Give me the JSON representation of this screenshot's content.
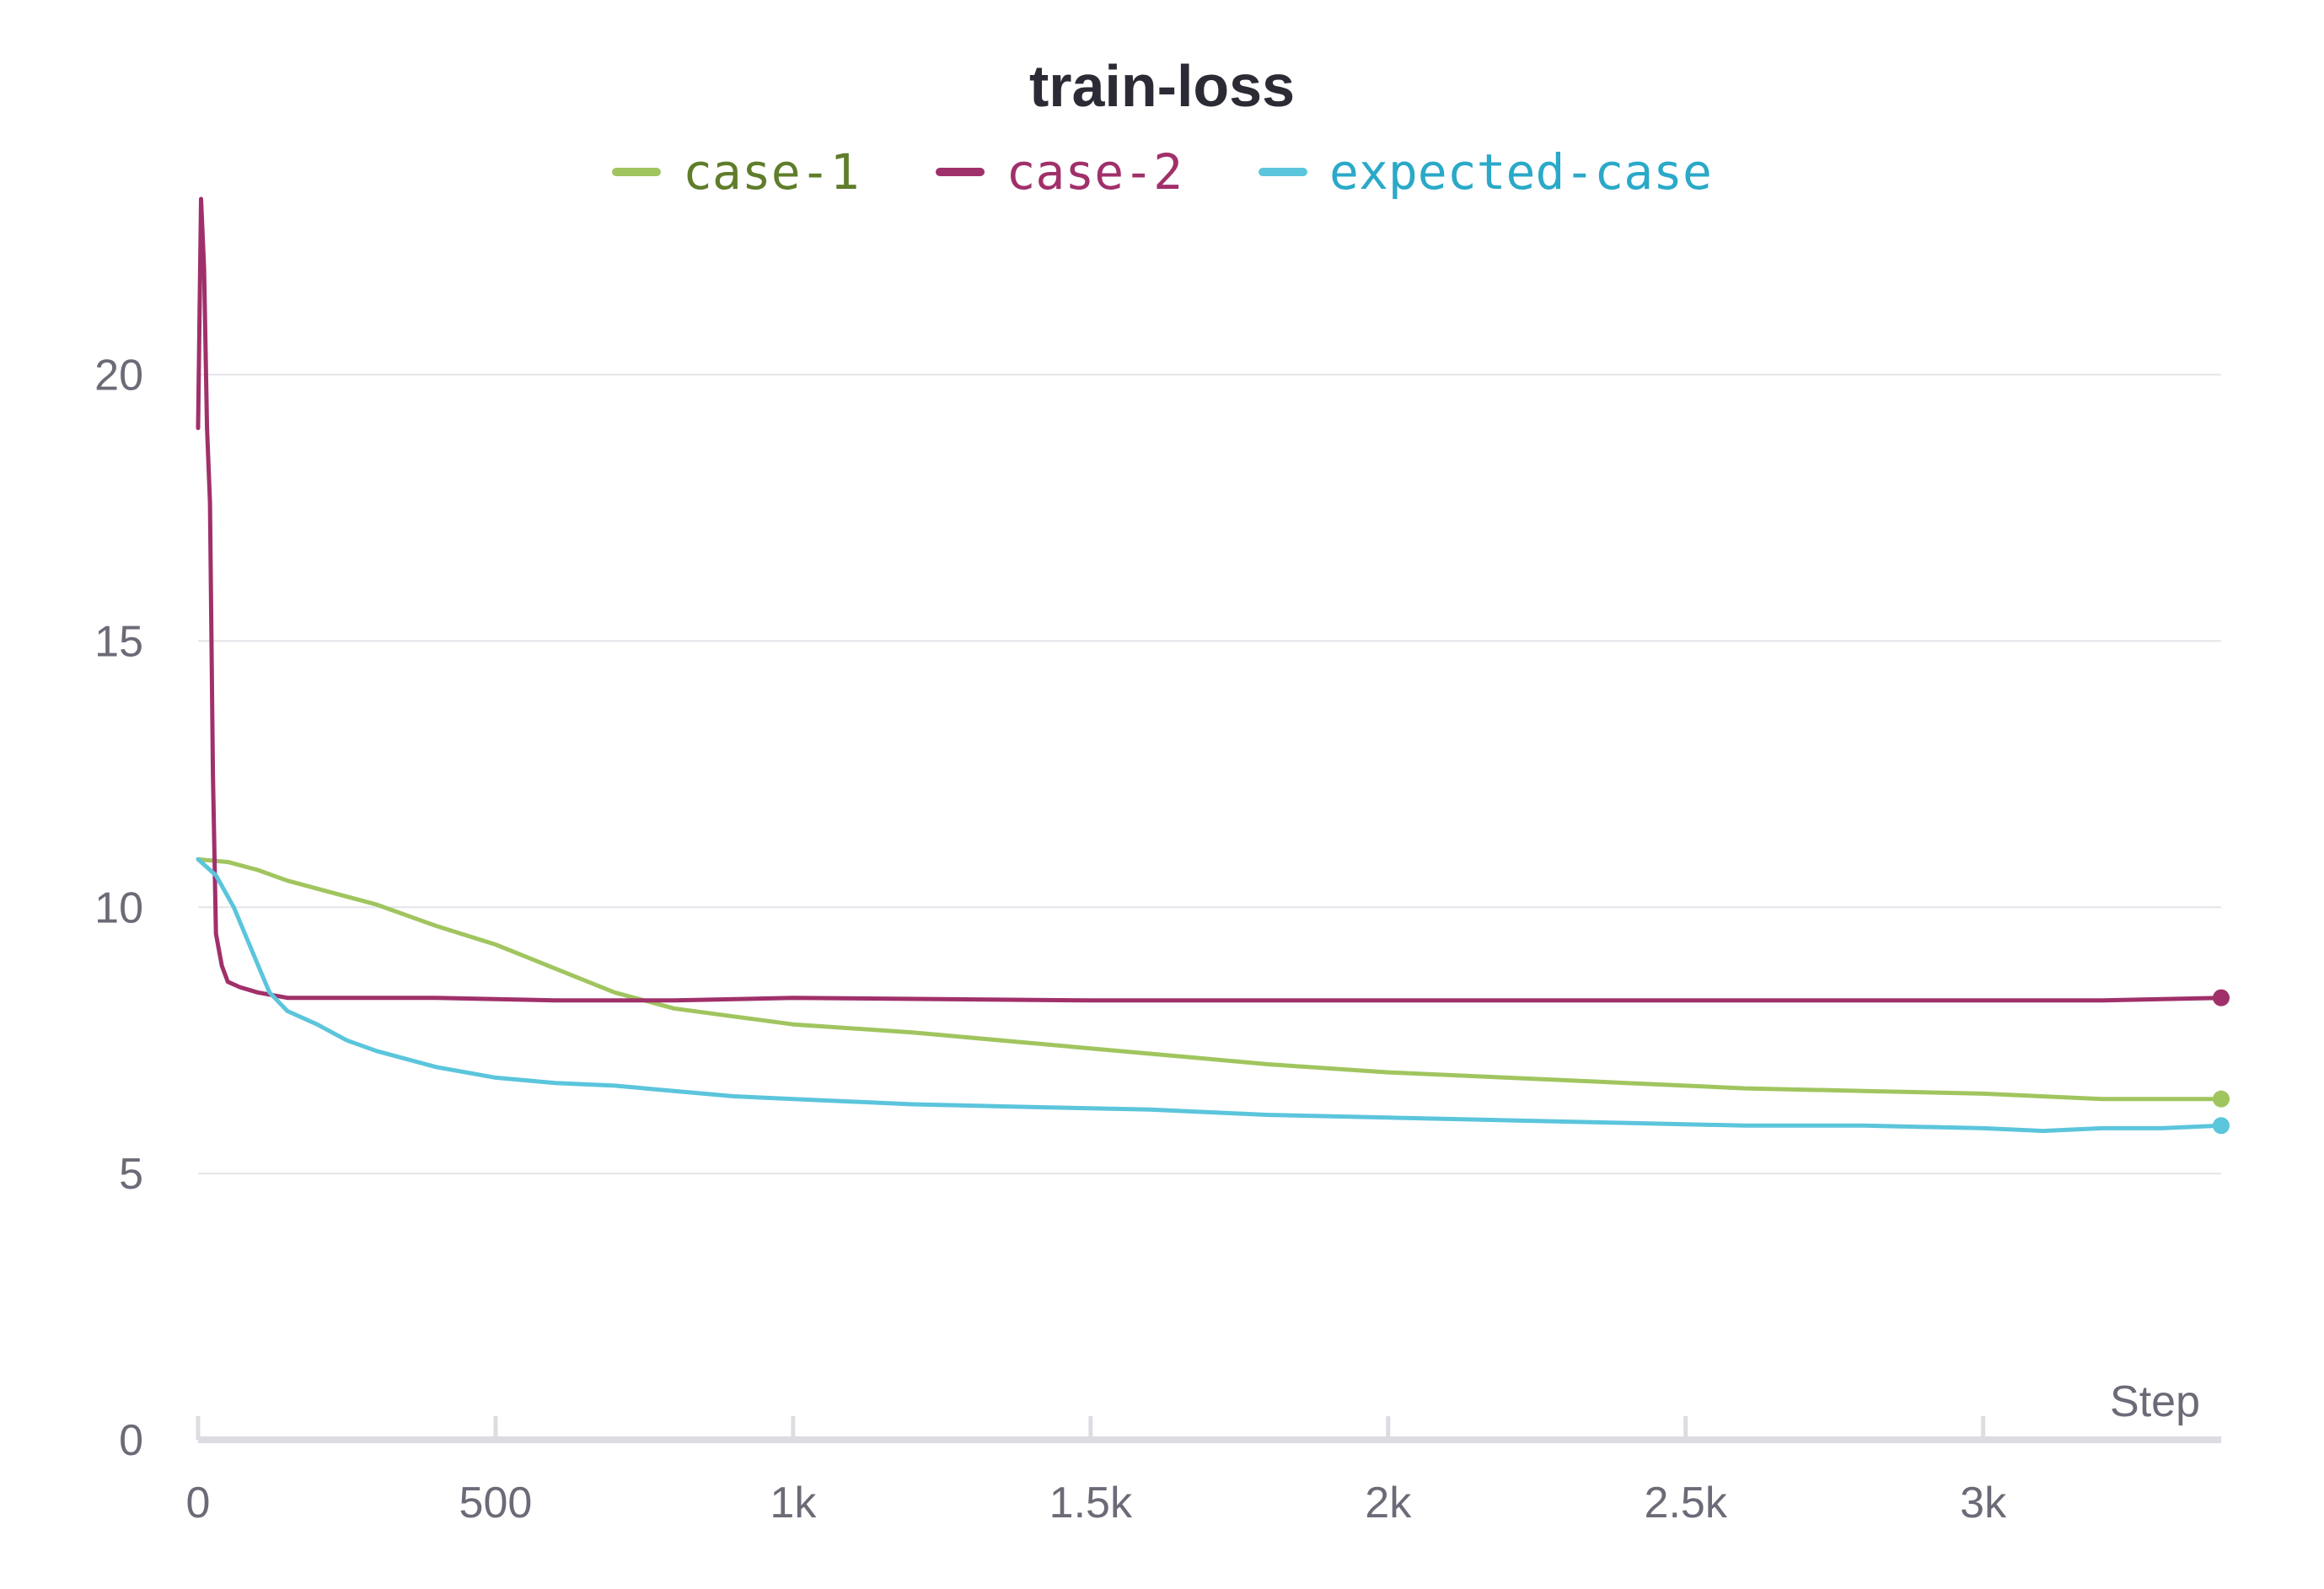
{
  "chart_data": {
    "type": "line",
    "title": "train-loss",
    "xlabel": "Step",
    "ylabel": "",
    "xlim": [
      0,
      3400
    ],
    "ylim": [
      0,
      23
    ],
    "x_ticks": [
      0,
      500,
      1000,
      1500,
      2000,
      2500,
      3000
    ],
    "x_tick_labels": [
      "0",
      "500",
      "1k",
      "1.5k",
      "2k",
      "2.5k",
      "3k"
    ],
    "y_ticks": [
      0,
      5,
      10,
      15,
      20
    ],
    "y_tick_labels": [
      "0",
      "5",
      "10",
      "15",
      "20"
    ],
    "grid": "horizontal",
    "legend_position": "top-center",
    "series": [
      {
        "name": "case-1",
        "color": "#a0c55f",
        "text_color": "#5f7d2a",
        "x": [
          0,
          50,
          100,
          150,
          200,
          300,
          400,
          500,
          600,
          700,
          800,
          900,
          1000,
          1200,
          1400,
          1600,
          1800,
          2000,
          2200,
          2400,
          2600,
          2800,
          3000,
          3200,
          3400
        ],
        "y": [
          10.9,
          10.85,
          10.7,
          10.5,
          10.35,
          10.05,
          9.65,
          9.3,
          8.85,
          8.4,
          8.1,
          7.95,
          7.8,
          7.65,
          7.45,
          7.25,
          7.05,
          6.9,
          6.8,
          6.7,
          6.6,
          6.55,
          6.5,
          6.4,
          6.4
        ]
      },
      {
        "name": "case-2",
        "color": "#a0306a",
        "text_color": "#a0306a",
        "x": [
          0,
          5,
          10,
          15,
          20,
          25,
          30,
          40,
          50,
          70,
          100,
          150,
          200,
          400,
          600,
          800,
          1000,
          1500,
          2000,
          2500,
          3000,
          3200,
          3400
        ],
        "y": [
          19.0,
          23.3,
          22.0,
          19.0,
          17.6,
          12.5,
          9.5,
          8.9,
          8.6,
          8.5,
          8.4,
          8.3,
          8.3,
          8.3,
          8.25,
          8.25,
          8.3,
          8.25,
          8.25,
          8.25,
          8.25,
          8.25,
          8.3
        ]
      },
      {
        "name": "expected-case",
        "color": "#5bc5dc",
        "text_color": "#2aa9c8",
        "x": [
          0,
          30,
          60,
          90,
          120,
          150,
          200,
          250,
          300,
          400,
          500,
          600,
          700,
          800,
          900,
          1000,
          1200,
          1400,
          1600,
          1800,
          2000,
          2200,
          2400,
          2600,
          2800,
          3000,
          3100,
          3200,
          3300,
          3400
        ],
        "y": [
          10.9,
          10.6,
          10.0,
          9.2,
          8.4,
          8.05,
          7.8,
          7.5,
          7.3,
          7.0,
          6.8,
          6.7,
          6.65,
          6.55,
          6.45,
          6.4,
          6.3,
          6.25,
          6.2,
          6.1,
          6.05,
          6.0,
          5.95,
          5.9,
          5.9,
          5.85,
          5.8,
          5.85,
          5.85,
          5.9
        ]
      }
    ]
  }
}
